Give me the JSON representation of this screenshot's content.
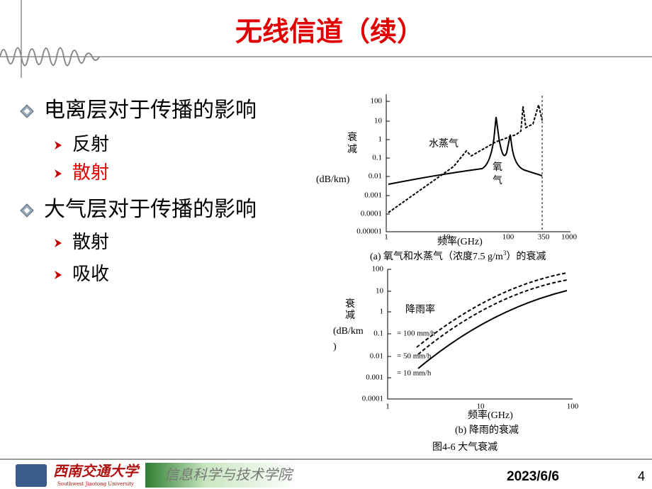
{
  "title": "无线信道（续）",
  "bullets": [
    {
      "text": "电离层对于传播的影响",
      "items": [
        "反射",
        "散射"
      ]
    },
    {
      "text": "大气层对于传播的影响",
      "items": [
        "散射",
        "吸收"
      ]
    }
  ],
  "figure": {
    "a": {
      "y_label": [
        "衰",
        "减"
      ],
      "y_unit": "(dB/km)",
      "yticks": [
        "100",
        "10",
        "1",
        "0.1",
        "0.01",
        "0.001",
        "0.0001",
        "0.00001"
      ],
      "xticks": [
        "1",
        "10",
        "100",
        "350",
        "1000"
      ],
      "curve_labels": [
        "水蒸气",
        "氧",
        "气"
      ],
      "x_label": "频率(GHz)",
      "caption": [
        "(a) 氧气和水蒸气（浓度7.5 g/m",
        "3",
        "）的衰减"
      ]
    },
    "b": {
      "y_label": [
        "衰",
        "减"
      ],
      "y_unit": [
        "(dB/km",
        ")"
      ],
      "yticks": [
        "100",
        "10",
        "1",
        "0.1",
        "0.01",
        "0.001",
        "0.0001"
      ],
      "xticks": [
        "1",
        "10",
        "100"
      ],
      "legend_title": "降雨率",
      "rates": [
        "= 100 mm/h",
        "= 50 mm/h",
        "= 10 mm/h"
      ],
      "x_label": "频率(GHz)",
      "caption": "(b) 降雨的衰减"
    },
    "caption": "图4-6 大气衰减"
  },
  "footer": {
    "school": "西南交通大学",
    "school_en": "Southwest Jiaotong University",
    "college": "信息科学与技术学院",
    "date": "2023/6/6",
    "page": "4"
  }
}
